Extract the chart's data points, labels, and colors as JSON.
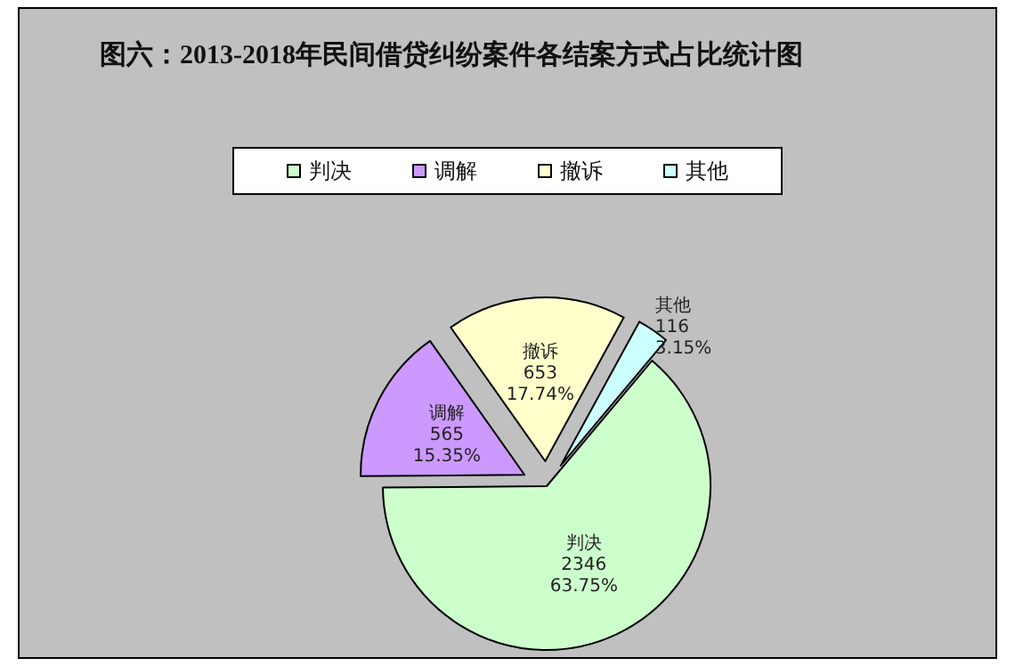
{
  "chart_data": {
    "type": "pie",
    "title": "图六：2013-2018年民间借贷纠纷案件各结案方式占比统计图",
    "categories": [
      "判决",
      "调解",
      "撤诉",
      "其他"
    ],
    "values": [
      2346,
      565,
      653,
      116
    ],
    "colors": [
      "#ccffcc",
      "#cc99ff",
      "#ffffcc",
      "#ccffff"
    ],
    "value_labels": [
      "2346\n63.75%",
      "565\n15.35%",
      "653\n17.74%",
      "116\n3.15%"
    ],
    "legend": "top"
  }
}
